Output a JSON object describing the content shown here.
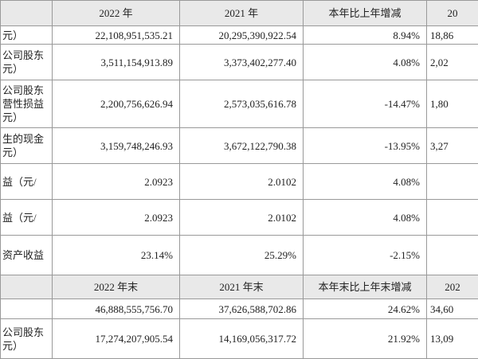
{
  "table": {
    "header": [
      "2022 年",
      "2021 年",
      "本年比上年增减",
      "20"
    ],
    "rows": [
      {
        "label": [
          "元）"
        ],
        "cells": [
          "22,108,951,535.21",
          "20,295,390,922.54",
          "8.94%",
          "18,86"
        ]
      },
      {
        "label": [
          "公司股东",
          "元）"
        ],
        "cells": [
          "3,511,154,913.89",
          "3,373,402,277.40",
          "4.08%",
          "2,02"
        ]
      },
      {
        "label": [
          "公司股东",
          "营性损益",
          "元）"
        ],
        "cells": [
          "2,200,756,626.94",
          "2,573,035,616.78",
          "-14.47%",
          "1,80"
        ]
      },
      {
        "label": [
          "生的现金",
          "元）"
        ],
        "cells": [
          "3,159,748,246.93",
          "3,672,122,790.38",
          "-13.95%",
          "3,27"
        ]
      },
      {
        "label": [
          "益（元/"
        ],
        "cells": [
          "2.0923",
          "2.0102",
          "4.08%"
        ]
      },
      {
        "label": [
          "益（元/"
        ],
        "cells": [
          "2.0923",
          "2.0102",
          "4.08%"
        ]
      },
      {
        "label": [
          "资产收益"
        ],
        "cells": [
          "23.14%",
          "25.29%",
          "-2.15%"
        ]
      }
    ],
    "header2": [
      "2022 年末",
      "2021 年末",
      "本年末比上年末增减",
      "202"
    ],
    "rows2": [
      {
        "cells": [
          "46,888,555,756.70",
          "37,626,588,702.86",
          "24.62%",
          "34,60"
        ]
      },
      {
        "label": [
          "公司股东",
          "元）"
        ],
        "cells": [
          "17,274,207,905.54",
          "14,169,056,317.72",
          "21.92%",
          "13,09"
        ]
      }
    ]
  }
}
